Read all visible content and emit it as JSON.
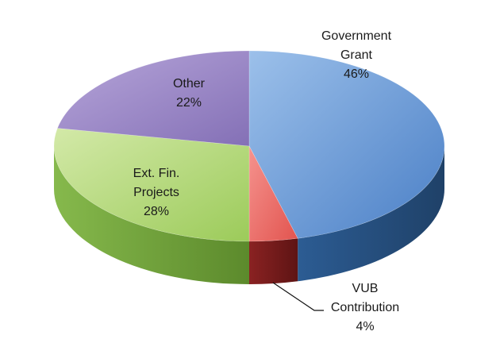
{
  "chart_data": {
    "type": "pie",
    "style": "3d",
    "title": "",
    "slices": [
      {
        "label_lines": [
          "Government",
          "Grant",
          "46%"
        ],
        "value": 46,
        "color": "#5b8fd3",
        "side_color": "#274d7d"
      },
      {
        "label_lines": [
          "VUB",
          "Contribution",
          "4%"
        ],
        "value": 4,
        "color": "#ef6f6a",
        "side_color": "#6f1a1a"
      },
      {
        "label_lines": [
          "Ext. Fin.",
          "Projects",
          "28%"
        ],
        "value": 28,
        "color": "#b3d77a",
        "side_color": "#6c9a34"
      },
      {
        "label_lines": [
          "Other",
          "22%"
        ],
        "value": 22,
        "color": "#9b85c4",
        "side_color": "#5a4680"
      }
    ]
  }
}
